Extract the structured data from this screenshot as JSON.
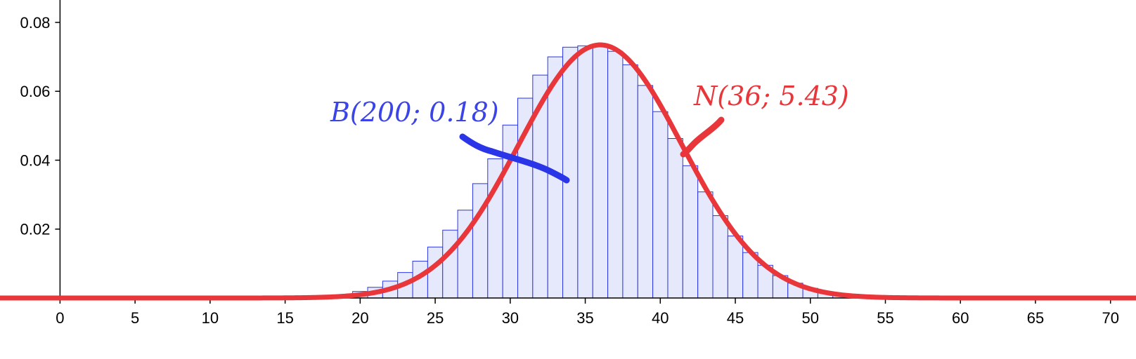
{
  "chart_data": {
    "type": "bar",
    "title": "",
    "xlabel": "",
    "ylabel": "",
    "xlim": [
      -4,
      71.7
    ],
    "ylim": [
      0,
      0.0865
    ],
    "grid": false,
    "x_ticks": [
      "0",
      "5",
      "10",
      "15",
      "20",
      "25",
      "30",
      "35",
      "40",
      "45",
      "50",
      "55",
      "60",
      "65",
      "70"
    ],
    "y_ticks": [
      "0.02",
      "0.04",
      "0.06",
      "0.08"
    ],
    "series": [
      {
        "kind": "histogram",
        "bin_width": 1,
        "x": [
          20,
          21,
          22,
          23,
          24,
          25,
          26,
          27,
          28,
          29,
          30,
          31,
          32,
          33,
          34,
          35,
          36,
          37,
          38,
          39,
          40,
          41,
          42,
          43,
          44,
          45,
          46,
          47,
          48,
          49,
          50,
          51,
          52
        ],
        "values": [
          0.0019,
          0.0031,
          0.0049,
          0.0074,
          0.0107,
          0.0148,
          0.0197,
          0.0255,
          0.0332,
          0.0404,
          0.0502,
          0.058,
          0.0647,
          0.07,
          0.0728,
          0.0732,
          0.0733,
          0.0716,
          0.0677,
          0.0617,
          0.0541,
          0.0463,
          0.0384,
          0.0308,
          0.0239,
          0.018,
          0.0132,
          0.0095,
          0.0065,
          0.0043,
          0.0028,
          0.0017,
          0.001
        ],
        "color": "#2a35e8",
        "fill": "#e6e8fb"
      },
      {
        "kind": "normal-curve",
        "mean": 36,
        "sd": 5.43,
        "color": "#e8363a"
      }
    ],
    "annotations": [
      {
        "text": "B(200; 0.18)",
        "color": "#3b44e8"
      },
      {
        "text": "N(36; 5.43)",
        "color": "#e8363a"
      }
    ],
    "colors": {
      "binomial": "#2a35e8",
      "normal": "#e8363a",
      "axis": "#000000"
    }
  }
}
